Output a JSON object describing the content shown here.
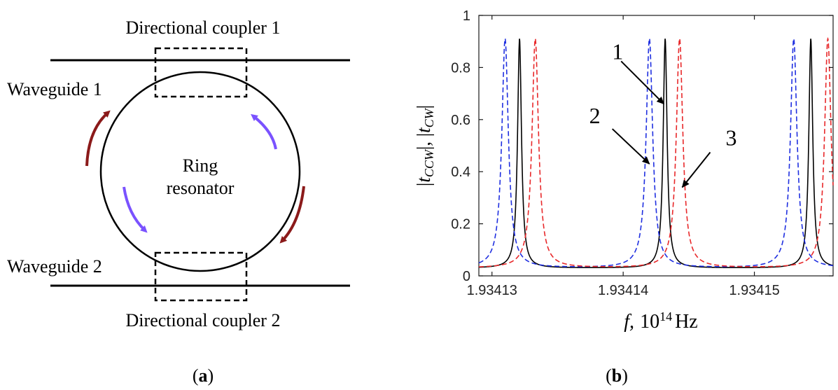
{
  "panel_a": {
    "coupler1_label": "Directional coupler 1",
    "coupler2_label": "Directional coupler 2",
    "waveguide1_label": "Waveguide 1",
    "waveguide2_label": "Waveguide 2",
    "ring_label_line1": "Ring",
    "ring_label_line2": "resonator",
    "caption_open": "(",
    "caption_letter": "a",
    "caption_close": ")",
    "colors": {
      "line": "#000000",
      "arrow_red": "#8b1a1a",
      "arrow_blue": "#7a52ff"
    }
  },
  "panel_b": {
    "caption_open": "(",
    "caption_letter": "b",
    "caption_close": ")",
    "colors": {
      "curve1": "#000000",
      "curve2": "#1f2fe0",
      "curve3": "#e8282a"
    }
  },
  "chart_data": {
    "type": "line",
    "xlabel_f": "f,",
    "xlabel_base": "10",
    "xlabel_exp": "14",
    "xlabel_unit": "Hz",
    "ylabel": "|tCCW|, |tCW|",
    "ylabel_parts": {
      "bar_left": "|",
      "t1": "t",
      "sub1": "CCW",
      "bar_mid": "|, |",
      "t2": "t",
      "sub2": "CW",
      "bar_right": "|"
    },
    "xlim": [
      1.934129,
      1.934156
    ],
    "ylim": [
      0,
      1
    ],
    "x_ticks": [
      {
        "value": 1.93413,
        "label": "1.93413"
      },
      {
        "value": 1.93414,
        "label": "1.93414"
      },
      {
        "value": 1.93415,
        "label": "1.93415"
      }
    ],
    "y_ticks": [
      {
        "value": 0,
        "label": "0"
      },
      {
        "value": 0.2,
        "label": "0.2"
      },
      {
        "value": 0.4,
        "label": "0.4"
      },
      {
        "value": 0.6,
        "label": "0.6"
      },
      {
        "value": 0.8,
        "label": "0.8"
      },
      {
        "value": 1,
        "label": "1"
      }
    ],
    "grid": false,
    "series": [
      {
        "name": "1",
        "style": "solid",
        "color": "#000000",
        "peaks": [
          1.9341321,
          1.9341432,
          1.9341543
        ],
        "peak_value": 0.91,
        "baseline": 0.03,
        "halfwidth": 1.8e-07
      },
      {
        "name": "2",
        "style": "dashed",
        "color": "#1f2fe0",
        "peaks": [
          1.934131,
          1.934142,
          1.934153
        ],
        "peak_value": 0.91,
        "baseline": 0.03,
        "halfwidth": 3e-07
      },
      {
        "name": "3",
        "style": "dashed",
        "color": "#e8282a",
        "peaks": [
          1.9341333,
          1.9341443,
          1.9341556
        ],
        "peak_value": 0.91,
        "baseline": 0.03,
        "halfwidth": 3e-07
      }
    ],
    "annotations": [
      {
        "label": "1",
        "target_x": 1.9341431,
        "target_y": 0.66
      },
      {
        "label": "2",
        "target_x": 1.934142,
        "target_y": 0.43
      },
      {
        "label": "3",
        "target_x": 1.9341445,
        "target_y": 0.34
      }
    ]
  }
}
